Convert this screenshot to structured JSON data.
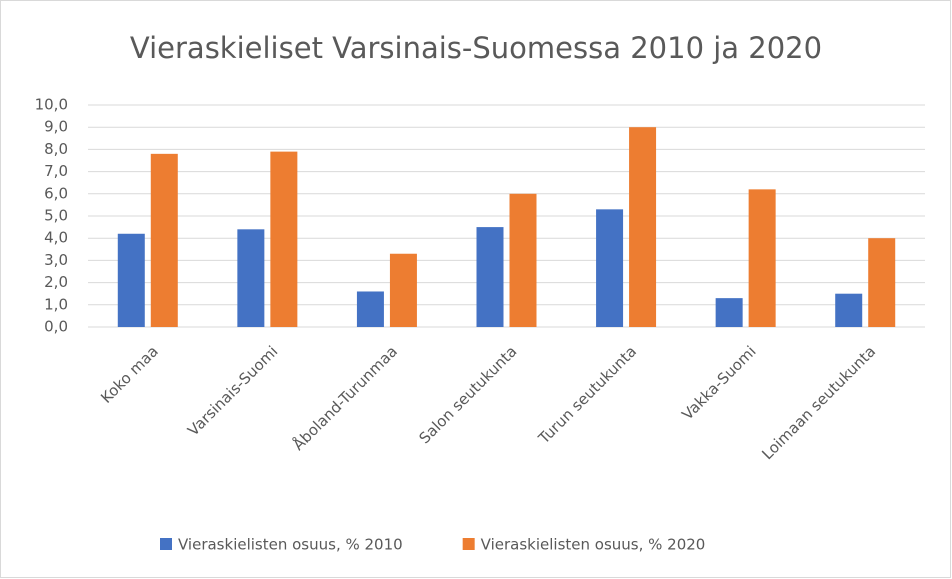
{
  "chart_data": {
    "type": "bar",
    "title": "Vieraskieliset Varsinais-Suomessa 2010 ja 2020",
    "categories": [
      "Koko maa",
      "Varsinais-Suomi",
      "Åboland-Turunmaa",
      "Salon seutukunta",
      "Turun seutukunta",
      "Vakka-Suomi",
      "Loimaan seutukunta"
    ],
    "series": [
      {
        "name": "Vieraskielisten osuus, % 2010",
        "color": "#4472c4",
        "values": [
          4.2,
          4.4,
          1.6,
          4.5,
          5.3,
          1.3,
          1.5
        ]
      },
      {
        "name": "Vieraskielisten osuus, % 2020",
        "color": "#ed7d31",
        "values": [
          7.8,
          7.9,
          3.3,
          6.0,
          9.0,
          6.2,
          4.0
        ]
      }
    ],
    "ylim": [
      0,
      10
    ],
    "yticks": [
      {
        "value": 0,
        "label": "0,0"
      },
      {
        "value": 1,
        "label": "1,0"
      },
      {
        "value": 2,
        "label": "2,0"
      },
      {
        "value": 3,
        "label": "3,0"
      },
      {
        "value": 4,
        "label": "4,0"
      },
      {
        "value": 5,
        "label": "5,0"
      },
      {
        "value": 6,
        "label": "6,0"
      },
      {
        "value": 7,
        "label": "7,0"
      },
      {
        "value": 8,
        "label": "8,0"
      },
      {
        "value": 9,
        "label": "9,0"
      },
      {
        "value": 10,
        "label": "10,0"
      }
    ],
    "grid": true,
    "legend": "bottom"
  }
}
